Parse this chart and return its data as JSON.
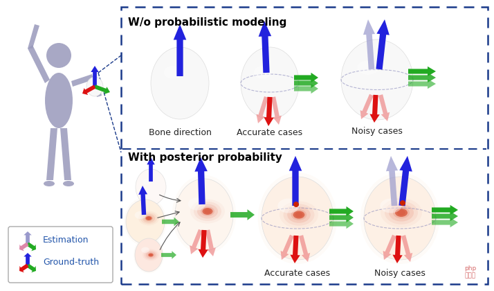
{
  "background_color": "#ffffff",
  "title": "",
  "figure_width": 7.14,
  "figure_height": 4.2,
  "dpi": 100,
  "outer_box_color": "#1a3a8a",
  "outer_box_linestyle": "dashed",
  "top_panel_title": "W/o probabilistic modeling",
  "bottom_panel_title": "With posterior probability",
  "top_labels": [
    "Bone direction",
    "Accurate cases",
    "Noisy cases"
  ],
  "bottom_labels": [
    "Accurate cases",
    "Noisy cases"
  ],
  "legend_estimation_color": "#c8a0c8",
  "legend_groundtruth_color": "#3333cc",
  "arrow_blue": "#2222dd",
  "arrow_blue_light": "#9999cc",
  "arrow_red": "#dd1111",
  "arrow_red_light": "#ee8888",
  "arrow_green": "#22aa22",
  "arrow_green_light": "#88cc88",
  "sphere_white": "#f5f5f5",
  "sphere_warm": "#fdf0e8",
  "human_color": "#9999bb",
  "label_color": "#000000",
  "panel_title_color": "#000000",
  "watermark_color": "#cc4444"
}
